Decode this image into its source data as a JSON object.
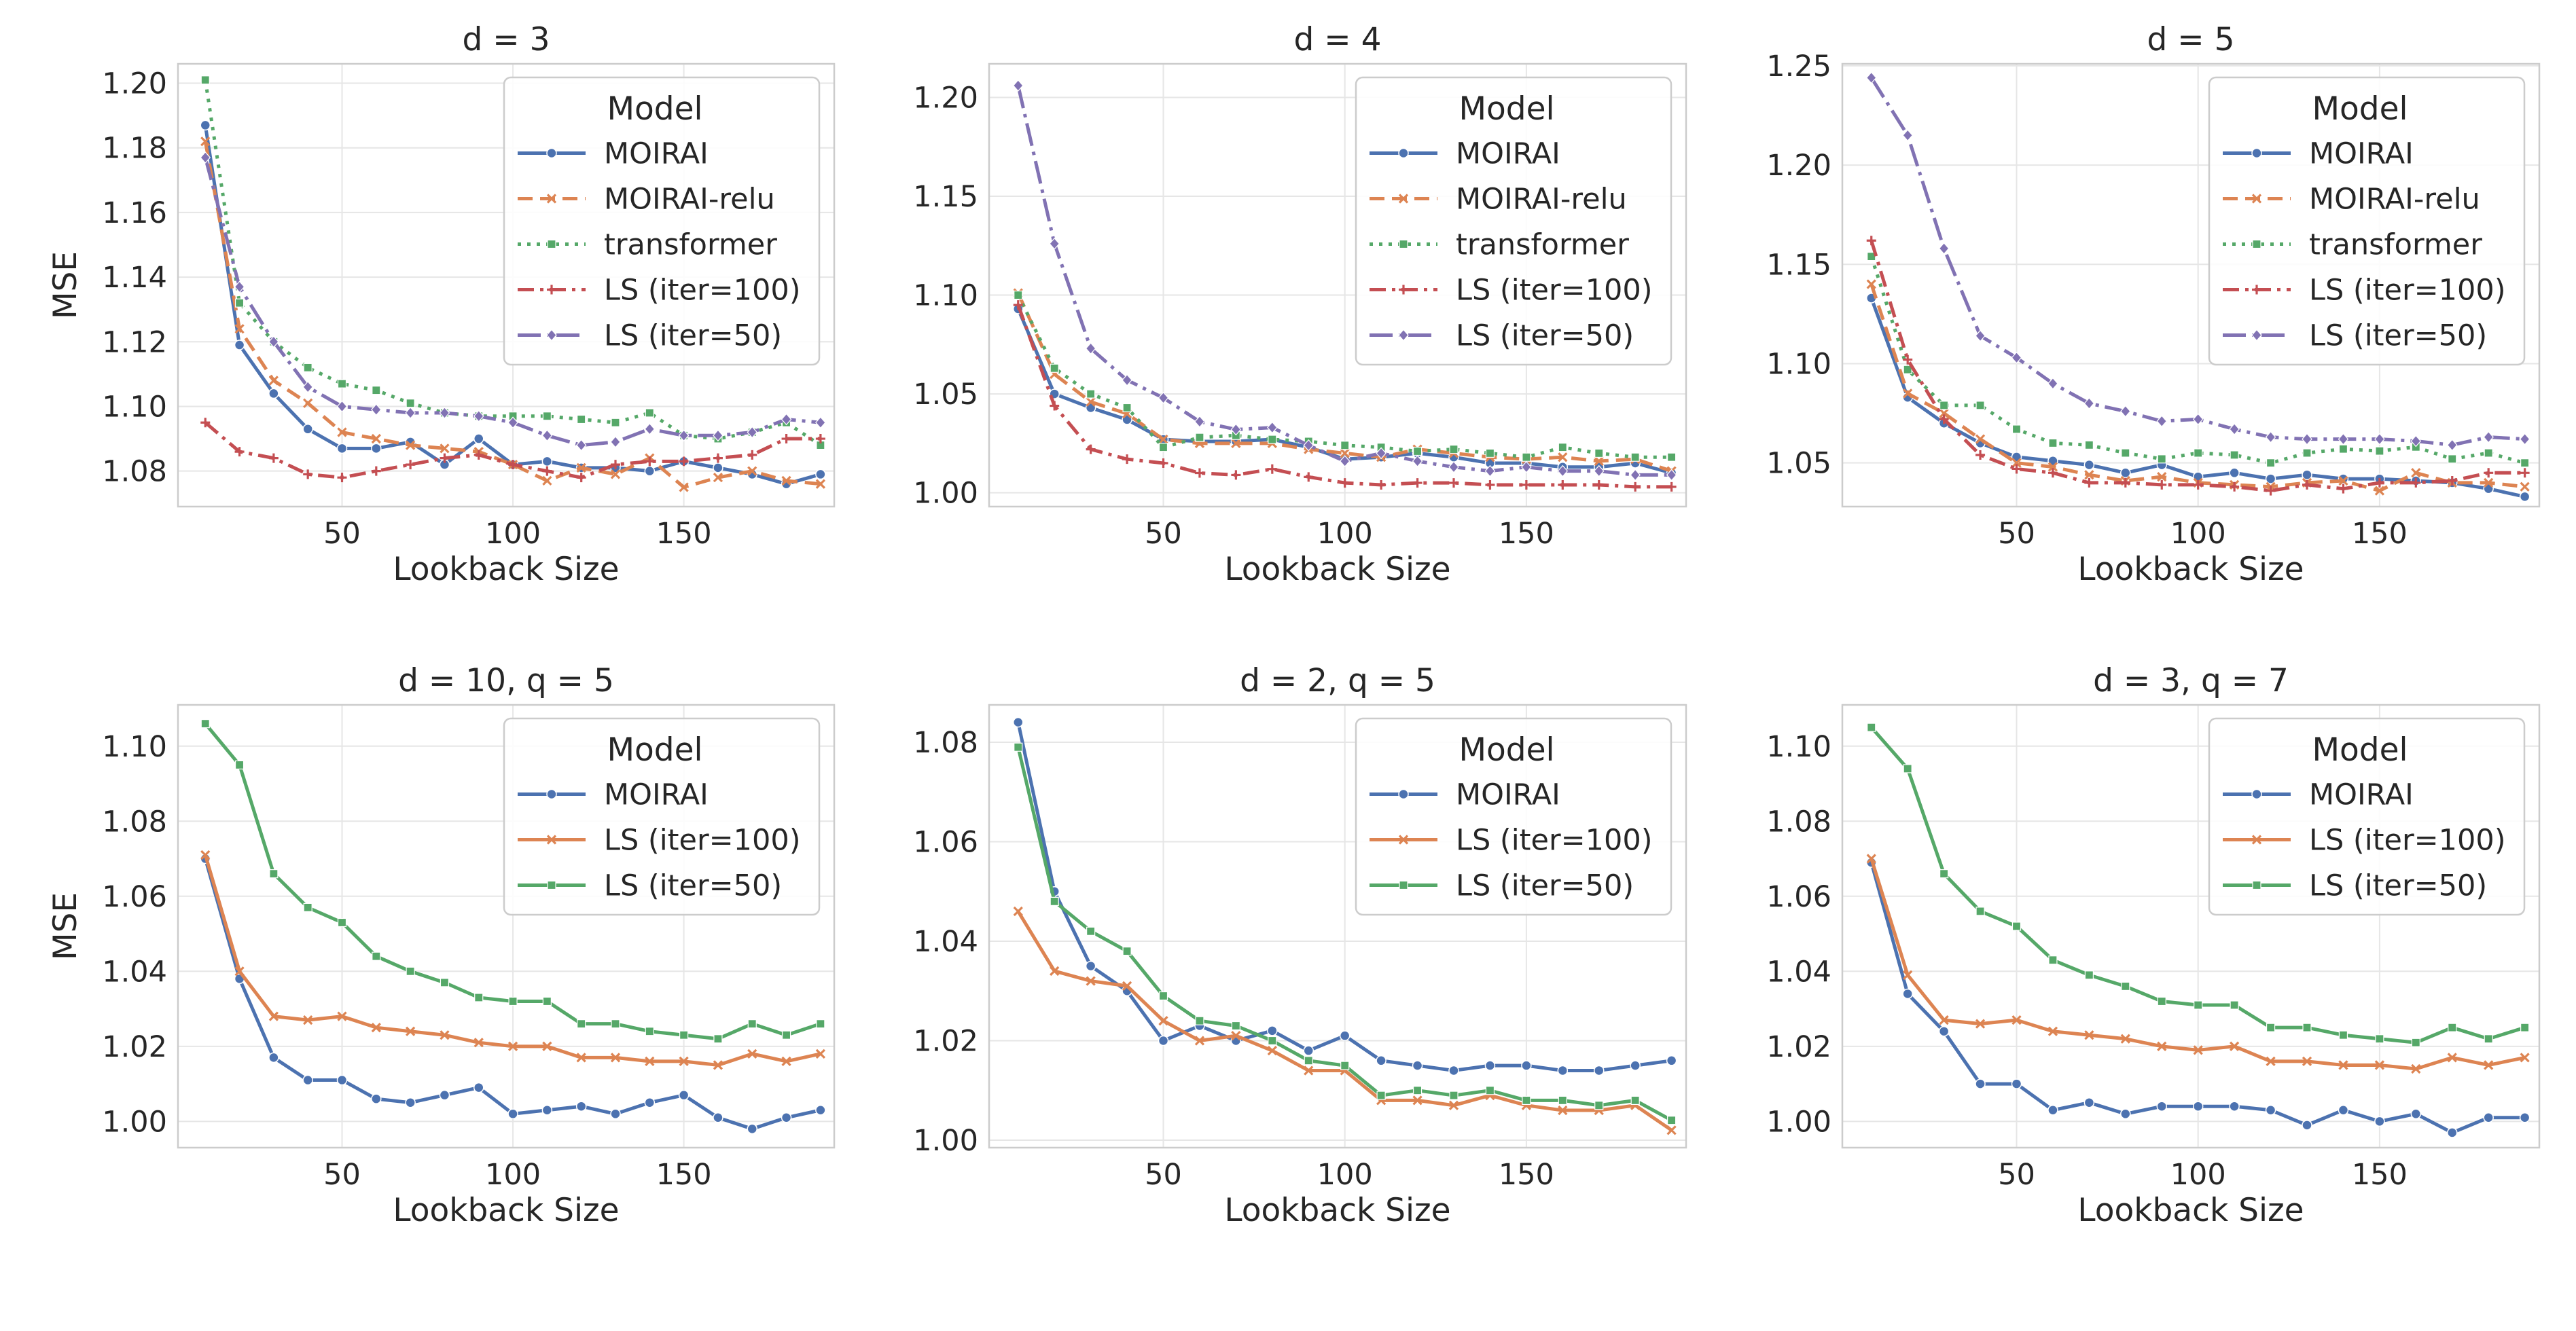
{
  "figure": {
    "background": "#ffffff",
    "grid_color": "#e6e6e6",
    "spine_color": "#cccccc",
    "text_color": "#262626"
  },
  "series_styles": {
    "MOIRAI": {
      "color": "#4c72b0",
      "marker": "circle"
    },
    "MOIRAI-relu": {
      "color": "#dd8452",
      "marker": "x"
    },
    "transformer": {
      "color": "#55a868",
      "marker": "square"
    },
    "LS (iter=100)": {
      "color": "#c44e52",
      "marker": "plus"
    },
    "LS (iter=50)": {
      "color": "#8172b3",
      "marker": "diamond"
    },
    "LS (iter=100) v2": {
      "color": "#dd8452",
      "marker": "x"
    },
    "LS (iter=50) v2": {
      "color": "#55a868",
      "marker": "square"
    }
  },
  "chart_data": [
    {
      "type": "line",
      "title": "d = 3",
      "xlabel": "Lookback Size",
      "ylabel": "MSE",
      "xlim": [
        2,
        194
      ],
      "ylim": [
        1.069,
        1.206
      ],
      "xticks": [
        50,
        100,
        150
      ],
      "yticks": [
        1.08,
        1.1,
        1.12,
        1.14,
        1.16,
        1.18,
        1.2
      ],
      "ytick_labels": [
        "1.08",
        "1.10",
        "1.12",
        "1.14",
        "1.16",
        "1.18",
        "1.20"
      ],
      "legend_title": "Model",
      "legend_position": "top-right",
      "x": [
        10,
        20,
        30,
        40,
        50,
        60,
        70,
        80,
        90,
        100,
        110,
        120,
        130,
        140,
        150,
        160,
        170,
        180,
        190
      ],
      "series": [
        {
          "name": "MOIRAI",
          "style": "MOIRAI",
          "dash": "solid",
          "values": [
            1.187,
            1.119,
            1.104,
            1.093,
            1.087,
            1.087,
            1.089,
            1.082,
            1.09,
            1.082,
            1.083,
            1.081,
            1.081,
            1.08,
            1.083,
            1.081,
            1.079,
            1.076,
            1.079
          ]
        },
        {
          "name": "MOIRAI-relu",
          "style": "MOIRAI-relu",
          "dash": "dashed",
          "values": [
            1.182,
            1.124,
            1.108,
            1.101,
            1.092,
            1.09,
            1.088,
            1.087,
            1.086,
            1.082,
            1.077,
            1.081,
            1.079,
            1.084,
            1.075,
            1.078,
            1.08,
            1.077,
            1.076
          ]
        },
        {
          "name": "transformer",
          "style": "transformer",
          "dash": "dotted",
          "values": [
            1.201,
            1.132,
            1.12,
            1.112,
            1.107,
            1.105,
            1.101,
            1.098,
            1.097,
            1.097,
            1.097,
            1.096,
            1.095,
            1.098,
            1.091,
            1.09,
            1.092,
            1.095,
            1.088
          ]
        },
        {
          "name": "LS (iter=100)",
          "style": "LS (iter=100)",
          "dash": "dashdot",
          "values": [
            1.095,
            1.086,
            1.084,
            1.079,
            1.078,
            1.08,
            1.082,
            1.084,
            1.085,
            1.082,
            1.08,
            1.078,
            1.082,
            1.083,
            1.083,
            1.084,
            1.085,
            1.09,
            1.09
          ]
        },
        {
          "name": "LS (iter=50)",
          "style": "LS (iter=50)",
          "dash": "longdash",
          "values": [
            1.177,
            1.137,
            1.12,
            1.106,
            1.1,
            1.099,
            1.098,
            1.098,
            1.097,
            1.095,
            1.091,
            1.088,
            1.089,
            1.093,
            1.091,
            1.091,
            1.092,
            1.096,
            1.095
          ]
        }
      ]
    },
    {
      "type": "line",
      "title": "d = 4",
      "xlabel": "Lookback Size",
      "ylabel": "",
      "xlim": [
        2,
        194
      ],
      "ylim": [
        0.993,
        1.217
      ],
      "xticks": [
        50,
        100,
        150
      ],
      "yticks": [
        1.0,
        1.05,
        1.1,
        1.15,
        1.2
      ],
      "ytick_labels": [
        "1.00",
        "1.05",
        "1.10",
        "1.15",
        "1.20"
      ],
      "legend_title": "Model",
      "legend_position": "top-right",
      "x": [
        10,
        20,
        30,
        40,
        50,
        60,
        70,
        80,
        90,
        100,
        110,
        120,
        130,
        140,
        150,
        160,
        170,
        180,
        190
      ],
      "series": [
        {
          "name": "MOIRAI",
          "style": "MOIRAI",
          "dash": "solid",
          "values": [
            1.093,
            1.05,
            1.043,
            1.037,
            1.027,
            1.026,
            1.026,
            1.027,
            1.023,
            1.017,
            1.018,
            1.02,
            1.018,
            1.015,
            1.015,
            1.013,
            1.013,
            1.015,
            1.01
          ]
        },
        {
          "name": "MOIRAI-relu",
          "style": "MOIRAI-relu",
          "dash": "dashed",
          "values": [
            1.101,
            1.06,
            1.046,
            1.04,
            1.027,
            1.025,
            1.025,
            1.025,
            1.022,
            1.02,
            1.018,
            1.022,
            1.02,
            1.018,
            1.017,
            1.018,
            1.016,
            1.017,
            1.011
          ]
        },
        {
          "name": "transformer",
          "style": "transformer",
          "dash": "dotted",
          "values": [
            1.1,
            1.063,
            1.05,
            1.043,
            1.023,
            1.028,
            1.029,
            1.027,
            1.026,
            1.024,
            1.023,
            1.021,
            1.022,
            1.02,
            1.018,
            1.023,
            1.02,
            1.018,
            1.018
          ]
        },
        {
          "name": "LS (iter=100)",
          "style": "LS (iter=100)",
          "dash": "dashdot",
          "values": [
            1.095,
            1.044,
            1.022,
            1.017,
            1.015,
            1.01,
            1.009,
            1.012,
            1.008,
            1.005,
            1.004,
            1.005,
            1.005,
            1.004,
            1.004,
            1.004,
            1.004,
            1.003,
            1.003
          ]
        },
        {
          "name": "LS (iter=50)",
          "style": "LS (iter=50)",
          "dash": "longdash",
          "values": [
            1.206,
            1.126,
            1.073,
            1.057,
            1.048,
            1.036,
            1.032,
            1.033,
            1.024,
            1.016,
            1.02,
            1.016,
            1.013,
            1.011,
            1.013,
            1.011,
            1.011,
            1.009,
            1.009
          ]
        }
      ]
    },
    {
      "type": "line",
      "title": "d = 5",
      "xlabel": "Lookback Size",
      "ylabel": "",
      "xlim": [
        2,
        194
      ],
      "ylim": [
        1.028,
        1.251
      ],
      "xticks": [
        50,
        100,
        150
      ],
      "yticks": [
        1.05,
        1.1,
        1.15,
        1.2,
        1.25
      ],
      "ytick_labels": [
        "1.05",
        "1.10",
        "1.15",
        "1.20",
        "1.25"
      ],
      "legend_title": "Model",
      "legend_position": "top-right",
      "x": [
        10,
        20,
        30,
        40,
        50,
        60,
        70,
        80,
        90,
        100,
        110,
        120,
        130,
        140,
        150,
        160,
        170,
        180,
        190
      ],
      "series": [
        {
          "name": "MOIRAI",
          "style": "MOIRAI",
          "dash": "solid",
          "values": [
            1.133,
            1.083,
            1.07,
            1.06,
            1.053,
            1.051,
            1.049,
            1.045,
            1.049,
            1.043,
            1.045,
            1.042,
            1.044,
            1.042,
            1.042,
            1.041,
            1.04,
            1.037,
            1.033
          ]
        },
        {
          "name": "MOIRAI-relu",
          "style": "MOIRAI-relu",
          "dash": "dashed",
          "values": [
            1.14,
            1.085,
            1.075,
            1.062,
            1.05,
            1.048,
            1.044,
            1.041,
            1.043,
            1.04,
            1.039,
            1.038,
            1.04,
            1.041,
            1.036,
            1.045,
            1.04,
            1.04,
            1.038
          ]
        },
        {
          "name": "transformer",
          "style": "transformer",
          "dash": "dotted",
          "values": [
            1.154,
            1.097,
            1.079,
            1.079,
            1.067,
            1.06,
            1.059,
            1.055,
            1.052,
            1.055,
            1.054,
            1.05,
            1.055,
            1.057,
            1.056,
            1.058,
            1.052,
            1.055,
            1.05
          ]
        },
        {
          "name": "LS (iter=100)",
          "style": "LS (iter=100)",
          "dash": "dashdot",
          "values": [
            1.162,
            1.102,
            1.072,
            1.054,
            1.047,
            1.045,
            1.04,
            1.04,
            1.039,
            1.039,
            1.038,
            1.036,
            1.039,
            1.037,
            1.04,
            1.04,
            1.041,
            1.045,
            1.045
          ]
        },
        {
          "name": "LS (iter=50)",
          "style": "LS (iter=50)",
          "dash": "longdash",
          "values": [
            1.244,
            1.215,
            1.158,
            1.114,
            1.103,
            1.09,
            1.08,
            1.076,
            1.071,
            1.072,
            1.067,
            1.063,
            1.062,
            1.062,
            1.062,
            1.061,
            1.059,
            1.063,
            1.062
          ]
        }
      ]
    },
    {
      "type": "line",
      "title": "d = 10, q = 5",
      "xlabel": "Lookback Size",
      "ylabel": "MSE",
      "xlim": [
        2,
        194
      ],
      "ylim": [
        0.993,
        1.111
      ],
      "xticks": [
        50,
        100,
        150
      ],
      "yticks": [
        1.0,
        1.02,
        1.04,
        1.06,
        1.08,
        1.1
      ],
      "ytick_labels": [
        "1.00",
        "1.02",
        "1.04",
        "1.06",
        "1.08",
        "1.10"
      ],
      "legend_title": "Model",
      "legend_position": "top-right",
      "x": [
        10,
        20,
        30,
        40,
        50,
        60,
        70,
        80,
        90,
        100,
        110,
        120,
        130,
        140,
        150,
        160,
        170,
        180,
        190
      ],
      "series": [
        {
          "name": "MOIRAI",
          "style": "MOIRAI",
          "dash": "solid",
          "values": [
            1.07,
            1.038,
            1.017,
            1.011,
            1.011,
            1.006,
            1.005,
            1.007,
            1.009,
            1.002,
            1.003,
            1.004,
            1.002,
            1.005,
            1.007,
            1.001,
            0.998,
            1.001,
            1.003
          ]
        },
        {
          "name": "LS (iter=100)",
          "style": "LS (iter=100) v2",
          "dash": "solid",
          "values": [
            1.071,
            1.04,
            1.028,
            1.027,
            1.028,
            1.025,
            1.024,
            1.023,
            1.021,
            1.02,
            1.02,
            1.017,
            1.017,
            1.016,
            1.016,
            1.015,
            1.018,
            1.016,
            1.018
          ]
        },
        {
          "name": "LS (iter=50)",
          "style": "LS (iter=50) v2",
          "dash": "solid",
          "values": [
            1.106,
            1.095,
            1.066,
            1.057,
            1.053,
            1.044,
            1.04,
            1.037,
            1.033,
            1.032,
            1.032,
            1.026,
            1.026,
            1.024,
            1.023,
            1.022,
            1.026,
            1.023,
            1.026
          ]
        }
      ]
    },
    {
      "type": "line",
      "title": "d = 2, q = 5",
      "xlabel": "Lookback Size",
      "ylabel": "",
      "xlim": [
        2,
        194
      ],
      "ylim": [
        0.9985,
        1.0875
      ],
      "xticks": [
        50,
        100,
        150
      ],
      "yticks": [
        1.0,
        1.02,
        1.04,
        1.06,
        1.08
      ],
      "ytick_labels": [
        "1.00",
        "1.02",
        "1.04",
        "1.06",
        "1.08"
      ],
      "legend_title": "Model",
      "legend_position": "top-right",
      "x": [
        10,
        20,
        30,
        40,
        50,
        60,
        70,
        80,
        90,
        100,
        110,
        120,
        130,
        140,
        150,
        160,
        170,
        180,
        190
      ],
      "series": [
        {
          "name": "MOIRAI",
          "style": "MOIRAI",
          "dash": "solid",
          "values": [
            1.084,
            1.05,
            1.035,
            1.03,
            1.02,
            1.023,
            1.02,
            1.022,
            1.018,
            1.021,
            1.016,
            1.015,
            1.014,
            1.015,
            1.015,
            1.014,
            1.014,
            1.015,
            1.016
          ]
        },
        {
          "name": "LS (iter=100)",
          "style": "LS (iter=100) v2",
          "dash": "solid",
          "values": [
            1.046,
            1.034,
            1.032,
            1.031,
            1.024,
            1.02,
            1.021,
            1.018,
            1.014,
            1.014,
            1.008,
            1.008,
            1.007,
            1.009,
            1.007,
            1.006,
            1.006,
            1.007,
            1.002
          ]
        },
        {
          "name": "LS (iter=50)",
          "style": "LS (iter=50) v2",
          "dash": "solid",
          "values": [
            1.079,
            1.048,
            1.042,
            1.038,
            1.029,
            1.024,
            1.023,
            1.02,
            1.016,
            1.015,
            1.009,
            1.01,
            1.009,
            1.01,
            1.008,
            1.008,
            1.007,
            1.008,
            1.004
          ]
        }
      ]
    },
    {
      "type": "line",
      "title": "d = 3, q = 7",
      "xlabel": "Lookback Size",
      "ylabel": "",
      "xlim": [
        2,
        194
      ],
      "ylim": [
        0.993,
        1.111
      ],
      "xticks": [
        50,
        100,
        150
      ],
      "yticks": [
        1.0,
        1.02,
        1.04,
        1.06,
        1.08,
        1.1
      ],
      "ytick_labels": [
        "1.00",
        "1.02",
        "1.04",
        "1.06",
        "1.08",
        "1.10"
      ],
      "legend_title": "Model",
      "legend_position": "top-right",
      "x": [
        10,
        20,
        30,
        40,
        50,
        60,
        70,
        80,
        90,
        100,
        110,
        120,
        130,
        140,
        150,
        160,
        170,
        180,
        190
      ],
      "series": [
        {
          "name": "MOIRAI",
          "style": "MOIRAI",
          "dash": "solid",
          "values": [
            1.069,
            1.034,
            1.024,
            1.01,
            1.01,
            1.003,
            1.005,
            1.002,
            1.004,
            1.004,
            1.004,
            1.003,
            0.999,
            1.003,
            1.0,
            1.002,
            0.997,
            1.001,
            1.001
          ]
        },
        {
          "name": "LS (iter=100)",
          "style": "LS (iter=100) v2",
          "dash": "solid",
          "values": [
            1.07,
            1.039,
            1.027,
            1.026,
            1.027,
            1.024,
            1.023,
            1.022,
            1.02,
            1.019,
            1.02,
            1.016,
            1.016,
            1.015,
            1.015,
            1.014,
            1.017,
            1.015,
            1.017
          ]
        },
        {
          "name": "LS (iter=50)",
          "style": "LS (iter=50) v2",
          "dash": "solid",
          "values": [
            1.105,
            1.094,
            1.066,
            1.056,
            1.052,
            1.043,
            1.039,
            1.036,
            1.032,
            1.031,
            1.031,
            1.025,
            1.025,
            1.023,
            1.022,
            1.021,
            1.025,
            1.022,
            1.025
          ]
        }
      ]
    }
  ]
}
